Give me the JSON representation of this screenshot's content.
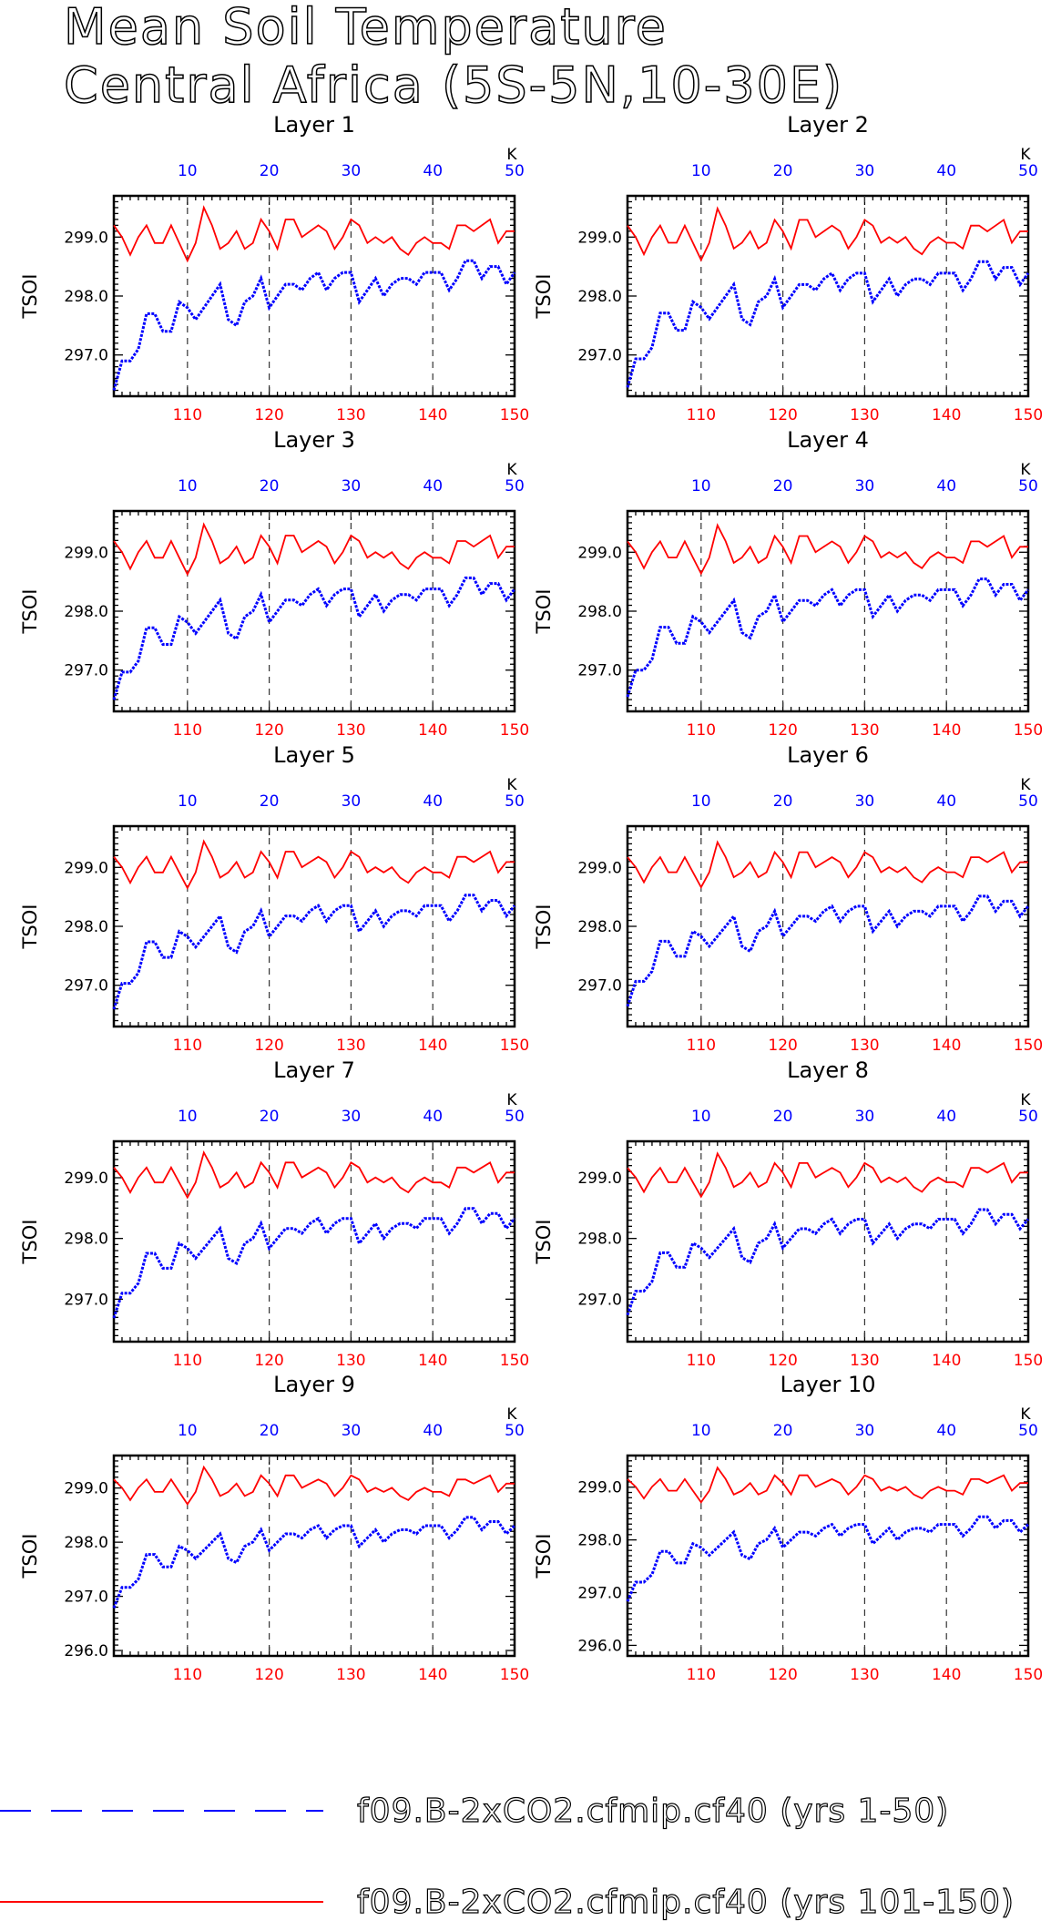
{
  "title_lines": [
    "Mean Soil Temperature",
    "Central Africa (5S-5N,10-30E)"
  ],
  "colors": {
    "series1": "#0000ff",
    "series2": "#ff0000",
    "axis": "#000000"
  },
  "chart_data": {
    "type": "line",
    "ylabel": "TSOI",
    "top_axis": {
      "label": "K",
      "ticks": [
        "10",
        "20",
        "30",
        "40",
        "50"
      ],
      "color": "#0000ff",
      "range": [
        1,
        50
      ]
    },
    "bottom_axis": {
      "ticks": [
        "110",
        "120",
        "130",
        "140",
        "150"
      ],
      "color": "#ff0000",
      "range": [
        101,
        150
      ]
    },
    "grid": "dashed vertical at 10, 20, 30, 40",
    "panels": [
      {
        "title": "Layer 1",
        "ylim": [
          296.3,
          299.7
        ],
        "yticks": [
          "297.0",
          "298.0",
          "299.0"
        ]
      },
      {
        "title": "Layer 2",
        "ylim": [
          296.3,
          299.7
        ],
        "yticks": [
          "297.0",
          "298.0",
          "299.0"
        ]
      },
      {
        "title": "Layer 3",
        "ylim": [
          296.3,
          299.7
        ],
        "yticks": [
          "297.0",
          "298.0",
          "299.0"
        ]
      },
      {
        "title": "Layer 4",
        "ylim": [
          296.3,
          299.7
        ],
        "yticks": [
          "297.0",
          "298.0",
          "299.0"
        ]
      },
      {
        "title": "Layer 5",
        "ylim": [
          296.3,
          299.7
        ],
        "yticks": [
          "297.0",
          "298.0",
          "299.0"
        ]
      },
      {
        "title": "Layer 6",
        "ylim": [
          296.3,
          299.7
        ],
        "yticks": [
          "297.0",
          "298.0",
          "299.0"
        ]
      },
      {
        "title": "Layer 7",
        "ylim": [
          296.3,
          299.6
        ],
        "yticks": [
          "297.0",
          "298.0",
          "299.0"
        ]
      },
      {
        "title": "Layer 8",
        "ylim": [
          296.3,
          299.6
        ],
        "yticks": [
          "297.0",
          "298.0",
          "299.0"
        ]
      },
      {
        "title": "Layer 9",
        "ylim": [
          295.9,
          299.6
        ],
        "yticks": [
          "296.0",
          "297.0",
          "298.0",
          "299.0"
        ]
      },
      {
        "title": "Layer 10",
        "ylim": [
          295.8,
          299.6
        ],
        "yticks": [
          "296.0",
          "297.0",
          "298.0",
          "299.0"
        ]
      }
    ],
    "series": [
      {
        "name": "f09.B-2xCO2.cfmip.cf40 (yrs 1-50)",
        "style": "dashed",
        "x": [
          1,
          2,
          3,
          4,
          5,
          6,
          7,
          8,
          9,
          10,
          11,
          12,
          13,
          14,
          15,
          16,
          17,
          18,
          19,
          20,
          21,
          22,
          23,
          24,
          25,
          26,
          27,
          28,
          29,
          30,
          31,
          32,
          33,
          34,
          35,
          36,
          37,
          38,
          39,
          40,
          41,
          42,
          43,
          44,
          45,
          46,
          47,
          48,
          49,
          50
        ],
        "values": [
          296.4,
          296.9,
          296.9,
          297.1,
          297.7,
          297.7,
          297.4,
          297.4,
          297.9,
          297.8,
          297.6,
          297.8,
          298.0,
          298.2,
          297.6,
          297.5,
          297.9,
          298.0,
          298.3,
          297.8,
          298.0,
          298.2,
          298.2,
          298.1,
          298.3,
          298.4,
          298.1,
          298.3,
          298.4,
          298.4,
          297.9,
          298.1,
          298.3,
          298.0,
          298.2,
          298.3,
          298.3,
          298.2,
          298.4,
          298.4,
          298.4,
          298.1,
          298.3,
          298.6,
          298.6,
          298.3,
          298.5,
          298.5,
          298.2,
          298.4
        ]
      },
      {
        "name": "f09.B-2xCO2.cfmip.cf40 (yrs 101-150)",
        "style": "solid",
        "x": [
          101,
          102,
          103,
          104,
          105,
          106,
          107,
          108,
          109,
          110,
          111,
          112,
          113,
          114,
          115,
          116,
          117,
          118,
          119,
          120,
          121,
          122,
          123,
          124,
          125,
          126,
          127,
          128,
          129,
          130,
          131,
          132,
          133,
          134,
          135,
          136,
          137,
          138,
          139,
          140,
          141,
          142,
          143,
          144,
          145,
          146,
          147,
          148,
          149,
          150
        ],
        "values": [
          299.2,
          299.0,
          298.7,
          299.0,
          299.2,
          298.9,
          298.9,
          299.2,
          298.9,
          298.6,
          298.9,
          299.5,
          299.2,
          298.8,
          298.9,
          299.1,
          298.8,
          298.9,
          299.3,
          299.1,
          298.8,
          299.3,
          299.3,
          299.0,
          299.1,
          299.2,
          299.1,
          298.8,
          299.0,
          299.3,
          299.2,
          298.9,
          299.0,
          298.9,
          299.0,
          298.8,
          298.7,
          298.9,
          299.0,
          298.9,
          298.9,
          298.8,
          299.2,
          299.2,
          299.1,
          299.2,
          299.3,
          298.9,
          299.1,
          299.1
        ]
      }
    ]
  }
}
